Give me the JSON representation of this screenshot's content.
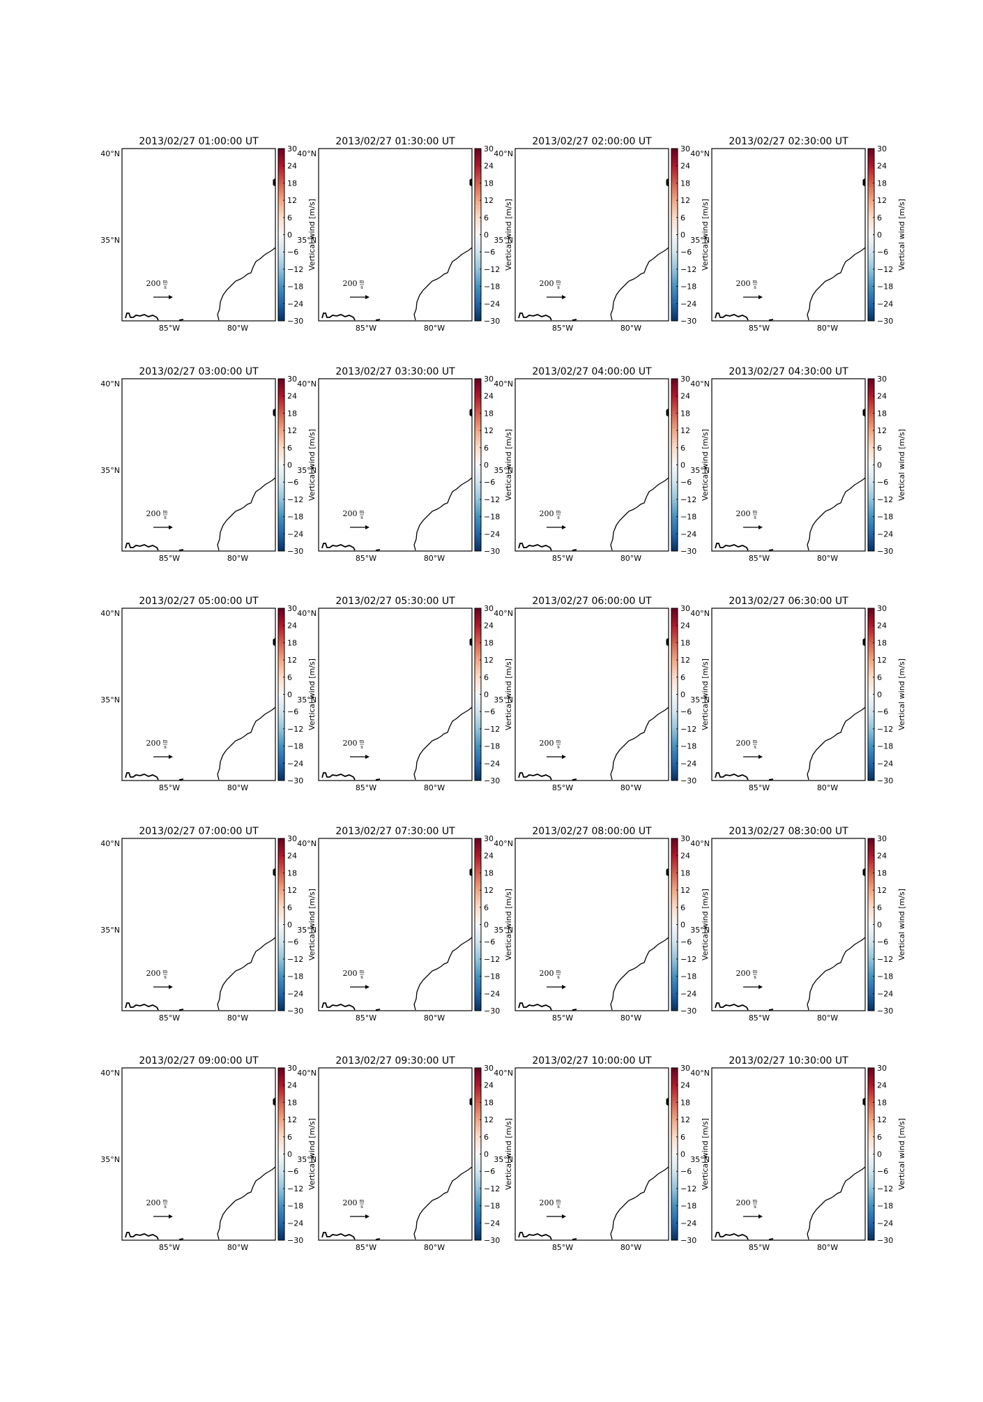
{
  "chart_data": {
    "type": "map",
    "layout": {
      "rows": 5,
      "cols": 4
    },
    "titles": [
      "2013/02/27 01:00:00 UT",
      "2013/02/27 01:30:00 UT",
      "2013/02/27 02:00:00 UT",
      "2013/02/27 02:30:00 UT",
      "2013/02/27 03:00:00 UT",
      "2013/02/27 03:30:00 UT",
      "2013/02/27 04:00:00 UT",
      "2013/02/27 04:30:00 UT",
      "2013/02/27 05:00:00 UT",
      "2013/02/27 05:30:00 UT",
      "2013/02/27 06:00:00 UT",
      "2013/02/27 06:30:00 UT",
      "2013/02/27 07:00:00 UT",
      "2013/02/27 07:30:00 UT",
      "2013/02/27 08:00:00 UT",
      "2013/02/27 08:30:00 UT",
      "2013/02/27 09:00:00 UT",
      "2013/02/27 09:30:00 UT",
      "2013/02/27 10:00:00 UT",
      "2013/02/27 10:30:00 UT"
    ],
    "lat_ticks": [
      "40°N",
      "35°N"
    ],
    "lon_ticks": [
      "85°W",
      "80°W"
    ],
    "colorbar": {
      "label": "Vertical wind [m/s]",
      "ticks": [
        30,
        24,
        18,
        12,
        6,
        0,
        -6,
        -12,
        -18,
        -24,
        -30
      ],
      "range": [
        -30,
        30
      ],
      "colormap": "RdBu_r",
      "colors": [
        "#053061",
        "#2166ac",
        "#4393c3",
        "#92c5de",
        "#d1e5f0",
        "#f7f7f7",
        "#fddbc7",
        "#f4a582",
        "#d6604d",
        "#b2182b",
        "#67001f"
      ]
    },
    "quiver_key": {
      "value": "200",
      "unit_num": "m",
      "unit_den": "s"
    }
  }
}
